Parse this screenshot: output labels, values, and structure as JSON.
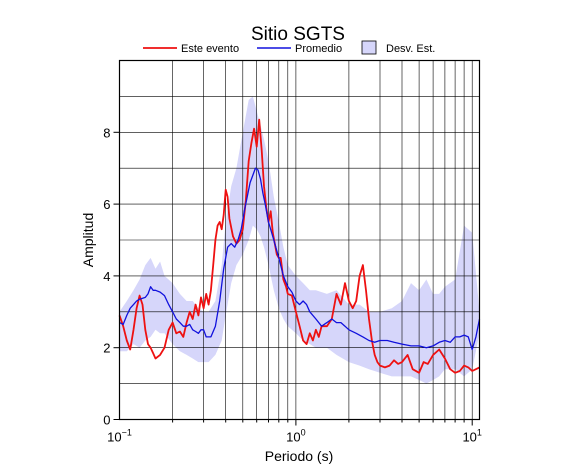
{
  "chart_data": {
    "type": "line",
    "title": "Sitio SGTS",
    "xlabel": "Periodo (s)",
    "ylabel": "Amplitud",
    "xscale": "log",
    "xlim": [
      0.1,
      11
    ],
    "ylim": [
      0,
      10
    ],
    "x_ticks": [
      {
        "base": "10",
        "exp": "−1",
        "value": 0.1
      },
      {
        "base": "10",
        "exp": "0",
        "value": 1
      },
      {
        "base": "10",
        "exp": "1",
        "value": 10
      }
    ],
    "y_ticks": [
      0,
      2,
      4,
      6,
      8
    ],
    "grid": true,
    "legend_position": "top",
    "legend": [
      {
        "label": "Este evento",
        "kind": "line",
        "color": "#ee1111"
      },
      {
        "label": "Promedio",
        "kind": "line",
        "color": "#1111dd"
      },
      {
        "label": "Desv. Est.",
        "kind": "box",
        "color": "#d6d6fa"
      }
    ],
    "series": [
      {
        "name": "Este evento",
        "color": "#ee1111",
        "points": [
          [
            0.1,
            2.9
          ],
          [
            0.105,
            2.6
          ],
          [
            0.11,
            2.2
          ],
          [
            0.115,
            1.95
          ],
          [
            0.12,
            2.5
          ],
          [
            0.125,
            3.1
          ],
          [
            0.13,
            3.45
          ],
          [
            0.135,
            3.2
          ],
          [
            0.14,
            2.5
          ],
          [
            0.145,
            2.1
          ],
          [
            0.15,
            2.0
          ],
          [
            0.155,
            1.85
          ],
          [
            0.16,
            1.7
          ],
          [
            0.17,
            1.8
          ],
          [
            0.18,
            2.0
          ],
          [
            0.19,
            2.5
          ],
          [
            0.2,
            2.7
          ],
          [
            0.21,
            2.4
          ],
          [
            0.22,
            2.45
          ],
          [
            0.23,
            2.3
          ],
          [
            0.24,
            2.7
          ],
          [
            0.25,
            3.0
          ],
          [
            0.26,
            2.8
          ],
          [
            0.27,
            3.2
          ],
          [
            0.28,
            2.9
          ],
          [
            0.29,
            3.4
          ],
          [
            0.3,
            3.1
          ],
          [
            0.31,
            3.5
          ],
          [
            0.32,
            3.2
          ],
          [
            0.33,
            3.6
          ],
          [
            0.34,
            4.3
          ],
          [
            0.35,
            5.0
          ],
          [
            0.36,
            5.4
          ],
          [
            0.37,
            5.5
          ],
          [
            0.38,
            5.3
          ],
          [
            0.39,
            5.7
          ],
          [
            0.4,
            6.4
          ],
          [
            0.41,
            6.2
          ],
          [
            0.42,
            5.6
          ],
          [
            0.44,
            5.1
          ],
          [
            0.46,
            4.9
          ],
          [
            0.48,
            5.0
          ],
          [
            0.5,
            5.3
          ],
          [
            0.52,
            6.1
          ],
          [
            0.54,
            7.2
          ],
          [
            0.56,
            7.7
          ],
          [
            0.58,
            8.1
          ],
          [
            0.6,
            7.6
          ],
          [
            0.62,
            8.35
          ],
          [
            0.64,
            7.5
          ],
          [
            0.66,
            6.5
          ],
          [
            0.68,
            5.9
          ],
          [
            0.7,
            5.5
          ],
          [
            0.72,
            5.8
          ],
          [
            0.74,
            5.2
          ],
          [
            0.76,
            4.9
          ],
          [
            0.78,
            4.6
          ],
          [
            0.8,
            4.5
          ],
          [
            0.82,
            4.5
          ],
          [
            0.85,
            3.9
          ],
          [
            0.88,
            3.7
          ],
          [
            0.9,
            3.5
          ],
          [
            0.95,
            3.45
          ],
          [
            1.0,
            3.0
          ],
          [
            1.05,
            2.6
          ],
          [
            1.1,
            2.2
          ],
          [
            1.15,
            2.1
          ],
          [
            1.2,
            2.4
          ],
          [
            1.25,
            2.2
          ],
          [
            1.3,
            2.5
          ],
          [
            1.35,
            2.3
          ],
          [
            1.4,
            2.6
          ],
          [
            1.5,
            2.6
          ],
          [
            1.6,
            2.8
          ],
          [
            1.7,
            3.5
          ],
          [
            1.8,
            3.2
          ],
          [
            1.9,
            3.8
          ],
          [
            2.0,
            3.3
          ],
          [
            2.1,
            3.1
          ],
          [
            2.2,
            3.3
          ],
          [
            2.3,
            4.0
          ],
          [
            2.4,
            4.3
          ],
          [
            2.5,
            3.6
          ],
          [
            2.6,
            2.8
          ],
          [
            2.7,
            2.2
          ],
          [
            2.8,
            1.8
          ],
          [
            2.9,
            1.6
          ],
          [
            3.0,
            1.5
          ],
          [
            3.2,
            1.45
          ],
          [
            3.4,
            1.5
          ],
          [
            3.6,
            1.65
          ],
          [
            3.8,
            1.55
          ],
          [
            4.0,
            1.6
          ],
          [
            4.3,
            1.8
          ],
          [
            4.6,
            1.4
          ],
          [
            5.0,
            1.3
          ],
          [
            5.3,
            1.6
          ],
          [
            5.6,
            1.55
          ],
          [
            6.0,
            1.8
          ],
          [
            6.5,
            1.95
          ],
          [
            7.0,
            1.7
          ],
          [
            7.5,
            1.4
          ],
          [
            8.0,
            1.3
          ],
          [
            8.5,
            1.35
          ],
          [
            9.0,
            1.5
          ],
          [
            9.5,
            1.45
          ],
          [
            10.0,
            1.35
          ],
          [
            10.5,
            1.4
          ],
          [
            11.0,
            1.45
          ]
        ]
      },
      {
        "name": "Promedio",
        "color": "#1111dd",
        "points": [
          [
            0.1,
            2.7
          ],
          [
            0.105,
            2.65
          ],
          [
            0.11,
            2.9
          ],
          [
            0.115,
            3.1
          ],
          [
            0.12,
            3.2
          ],
          [
            0.125,
            3.3
          ],
          [
            0.13,
            3.35
          ],
          [
            0.14,
            3.4
          ],
          [
            0.145,
            3.5
          ],
          [
            0.15,
            3.7
          ],
          [
            0.155,
            3.6
          ],
          [
            0.16,
            3.6
          ],
          [
            0.17,
            3.55
          ],
          [
            0.18,
            3.45
          ],
          [
            0.19,
            3.2
          ],
          [
            0.2,
            3.0
          ],
          [
            0.21,
            2.8
          ],
          [
            0.22,
            2.7
          ],
          [
            0.23,
            2.6
          ],
          [
            0.24,
            2.6
          ],
          [
            0.25,
            2.65
          ],
          [
            0.26,
            2.5
          ],
          [
            0.27,
            2.45
          ],
          [
            0.28,
            2.4
          ],
          [
            0.29,
            2.5
          ],
          [
            0.3,
            2.5
          ],
          [
            0.31,
            2.3
          ],
          [
            0.33,
            2.3
          ],
          [
            0.35,
            2.6
          ],
          [
            0.37,
            3.3
          ],
          [
            0.39,
            4.2
          ],
          [
            0.41,
            4.8
          ],
          [
            0.43,
            4.9
          ],
          [
            0.45,
            4.8
          ],
          [
            0.47,
            5.0
          ],
          [
            0.49,
            5.3
          ],
          [
            0.51,
            5.8
          ],
          [
            0.53,
            6.2
          ],
          [
            0.55,
            6.6
          ],
          [
            0.57,
            6.8
          ],
          [
            0.59,
            7.0
          ],
          [
            0.61,
            6.95
          ],
          [
            0.63,
            6.7
          ],
          [
            0.65,
            6.3
          ],
          [
            0.67,
            6.0
          ],
          [
            0.7,
            5.5
          ],
          [
            0.75,
            5.0
          ],
          [
            0.8,
            4.5
          ],
          [
            0.85,
            4.0
          ],
          [
            0.9,
            3.7
          ],
          [
            0.95,
            3.55
          ],
          [
            1.0,
            3.3
          ],
          [
            1.05,
            3.2
          ],
          [
            1.1,
            3.3
          ],
          [
            1.15,
            3.2
          ],
          [
            1.2,
            3.0
          ],
          [
            1.3,
            2.8
          ],
          [
            1.4,
            2.6
          ],
          [
            1.5,
            2.7
          ],
          [
            1.6,
            2.8
          ],
          [
            1.7,
            2.7
          ],
          [
            1.8,
            2.7
          ],
          [
            1.9,
            2.6
          ],
          [
            2.0,
            2.5
          ],
          [
            2.2,
            2.4
          ],
          [
            2.4,
            2.3
          ],
          [
            2.6,
            2.2
          ],
          [
            2.8,
            2.15
          ],
          [
            3.0,
            2.2
          ],
          [
            3.3,
            2.2
          ],
          [
            3.6,
            2.15
          ],
          [
            4.0,
            2.1
          ],
          [
            4.5,
            2.05
          ],
          [
            5.0,
            2.05
          ],
          [
            5.5,
            2.0
          ],
          [
            6.0,
            2.05
          ],
          [
            6.5,
            2.15
          ],
          [
            7.0,
            2.2
          ],
          [
            7.5,
            2.15
          ],
          [
            8.0,
            2.3
          ],
          [
            8.5,
            2.3
          ],
          [
            9.0,
            2.35
          ],
          [
            9.5,
            2.3
          ],
          [
            10.0,
            1.95
          ],
          [
            10.5,
            2.3
          ],
          [
            11.0,
            2.8
          ]
        ]
      }
    ],
    "band": {
      "name": "Desv. Est.",
      "color": "#d6d6fa",
      "points": [
        [
          0.1,
          3.0,
          1.9
        ],
        [
          0.11,
          3.3,
          1.9
        ],
        [
          0.12,
          3.6,
          2.1
        ],
        [
          0.13,
          3.9,
          2.0
        ],
        [
          0.14,
          4.3,
          2.2
        ],
        [
          0.15,
          4.5,
          2.3
        ],
        [
          0.16,
          4.2,
          2.5
        ],
        [
          0.17,
          4.4,
          2.4
        ],
        [
          0.18,
          4.0,
          2.4
        ],
        [
          0.2,
          3.8,
          2.1
        ],
        [
          0.22,
          3.5,
          1.9
        ],
        [
          0.24,
          3.3,
          1.8
        ],
        [
          0.26,
          3.3,
          1.7
        ],
        [
          0.28,
          3.1,
          1.6
        ],
        [
          0.3,
          3.0,
          1.6
        ],
        [
          0.32,
          3.0,
          1.6
        ],
        [
          0.35,
          3.3,
          1.8
        ],
        [
          0.38,
          4.3,
          2.2
        ],
        [
          0.4,
          5.5,
          2.9
        ],
        [
          0.43,
          6.5,
          3.8
        ],
        [
          0.46,
          7.0,
          4.3
        ],
        [
          0.5,
          8.0,
          4.6
        ],
        [
          0.54,
          8.9,
          5.0
        ],
        [
          0.57,
          9.0,
          5.4
        ],
        [
          0.6,
          8.6,
          5.3
        ],
        [
          0.63,
          8.2,
          5.1
        ],
        [
          0.66,
          7.8,
          4.8
        ],
        [
          0.7,
          7.2,
          4.3
        ],
        [
          0.75,
          6.2,
          3.6
        ],
        [
          0.8,
          5.5,
          3.1
        ],
        [
          0.85,
          4.8,
          2.8
        ],
        [
          0.9,
          4.3,
          2.6
        ],
        [
          1.0,
          4.0,
          2.4
        ],
        [
          1.1,
          3.8,
          2.2
        ],
        [
          1.2,
          3.6,
          2.1
        ],
        [
          1.3,
          3.6,
          2.0
        ],
        [
          1.5,
          3.5,
          2.0
        ],
        [
          1.7,
          3.6,
          1.8
        ],
        [
          2.0,
          3.2,
          1.6
        ],
        [
          2.3,
          3.2,
          1.5
        ],
        [
          2.6,
          3.0,
          1.4
        ],
        [
          3.0,
          3.0,
          1.3
        ],
        [
          3.5,
          3.1,
          1.2
        ],
        [
          4.0,
          3.3,
          1.2
        ],
        [
          4.5,
          3.8,
          1.2
        ],
        [
          5.0,
          3.6,
          1.1
        ],
        [
          5.5,
          3.9,
          1.0
        ],
        [
          6.0,
          3.5,
          1.1
        ],
        [
          6.5,
          3.5,
          1.2
        ],
        [
          7.0,
          3.7,
          1.4
        ],
        [
          8.0,
          3.9,
          1.4
        ],
        [
          9.0,
          5.4,
          1.2
        ],
        [
          10.0,
          5.2,
          1.4
        ],
        [
          11.0,
          3.0,
          2.4
        ]
      ]
    }
  }
}
